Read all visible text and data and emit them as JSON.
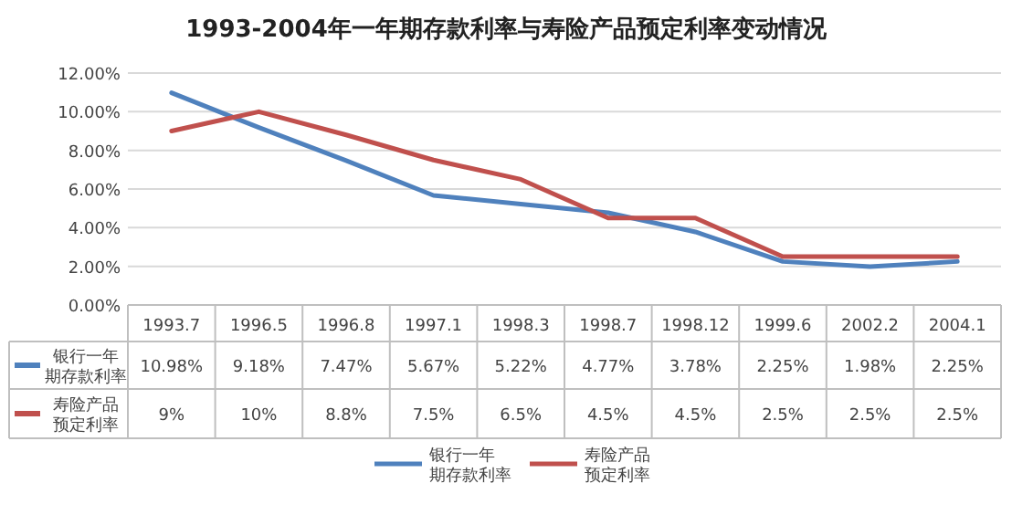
{
  "chart_data": {
    "type": "line",
    "title": "1993-2004年一年期存款利率与寿险产品预定利率变动情况",
    "categories": [
      "1993.7",
      "1996.5",
      "1996.8",
      "1997.1",
      "1998.3",
      "1998.7",
      "1998.12",
      "1999.6",
      "2002.2",
      "2004.1"
    ],
    "series": [
      {
        "name": "银行一年期存款利率",
        "color": "#4f81bd",
        "values": [
          10.98,
          9.18,
          7.47,
          5.67,
          5.22,
          4.77,
          3.78,
          2.25,
          1.98,
          2.25
        ],
        "value_labels": [
          "10.98%",
          "9.18%",
          "7.47%",
          "5.67%",
          "5.22%",
          "4.77%",
          "3.78%",
          "2.25%",
          "1.98%",
          "2.25%"
        ]
      },
      {
        "name": "寿险产品预定利率",
        "color": "#c0504d",
        "values": [
          9,
          10,
          8.8,
          7.5,
          6.5,
          4.5,
          4.5,
          2.5,
          2.5,
          2.5
        ],
        "value_labels": [
          "9%",
          "10%",
          "8.8%",
          "7.5%",
          "6.5%",
          "4.5%",
          "4.5%",
          "2.5%",
          "2.5%",
          "2.5%"
        ]
      }
    ],
    "ylim": [
      0,
      12
    ],
    "yticks": [
      {
        "value": 0,
        "label": "0.00%"
      },
      {
        "value": 2,
        "label": "2.00%"
      },
      {
        "value": 4,
        "label": "4.00%"
      },
      {
        "value": 6,
        "label": "6.00%"
      },
      {
        "value": 8,
        "label": "8.00%"
      },
      {
        "value": 10,
        "label": "10.00%"
      },
      {
        "value": 12,
        "label": "12.00%"
      }
    ],
    "grid": "y",
    "legend": "bottom",
    "marker": "none",
    "line_style": "solid"
  }
}
